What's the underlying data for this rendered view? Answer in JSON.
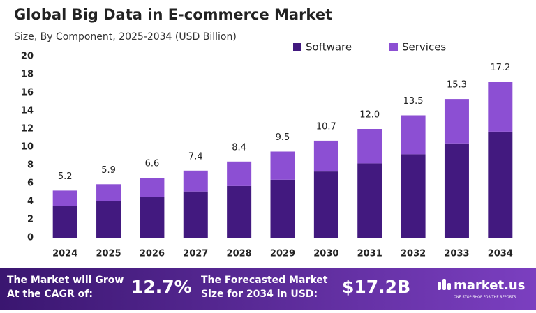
{
  "chart_data": {
    "type": "stacked_bar",
    "title": "Global Big Data in E-commerce Market",
    "subtitle": "Size, By Component, 2025-2034 (USD Billion)",
    "categories": [
      "2024",
      "2025",
      "2026",
      "2027",
      "2028",
      "2029",
      "2030",
      "2031",
      "2032",
      "2033",
      "2034"
    ],
    "series": [
      {
        "name": "Software",
        "color": "#42197f",
        "values": [
          3.5,
          4.0,
          4.5,
          5.1,
          5.7,
          6.4,
          7.3,
          8.2,
          9.2,
          10.4,
          11.7
        ]
      },
      {
        "name": "Services",
        "color": "#8c4fd3",
        "values": [
          1.7,
          1.9,
          2.1,
          2.3,
          2.7,
          3.1,
          3.4,
          3.8,
          4.3,
          4.9,
          5.5
        ]
      }
    ],
    "totals": {
      "values": [
        5.2,
        5.9,
        6.6,
        7.4,
        8.4,
        9.5,
        10.7,
        12.0,
        13.5,
        15.3,
        17.2
      ],
      "value_labels": [
        "5.2",
        "5.9",
        "6.6",
        "7.4",
        "8.4",
        "9.5",
        "10.7",
        "12.0",
        "13.5",
        "15.3",
        "17.2"
      ]
    },
    "ylim": [
      0,
      20
    ],
    "yticks": [
      0,
      2,
      4,
      6,
      8,
      10,
      12,
      14,
      16,
      18,
      20
    ],
    "grid": false,
    "legend": "top-right"
  },
  "footer": {
    "cagr_text": "The Market will Grow At the CAGR of:",
    "cagr_value": "12.7%",
    "forecast_text": "The Forecasted Market Size for 2034 in USD:",
    "forecast_value": "$17.2B",
    "brand": "market.us",
    "tagline": "ONE STOP SHOP FOR THE REPORTS"
  }
}
